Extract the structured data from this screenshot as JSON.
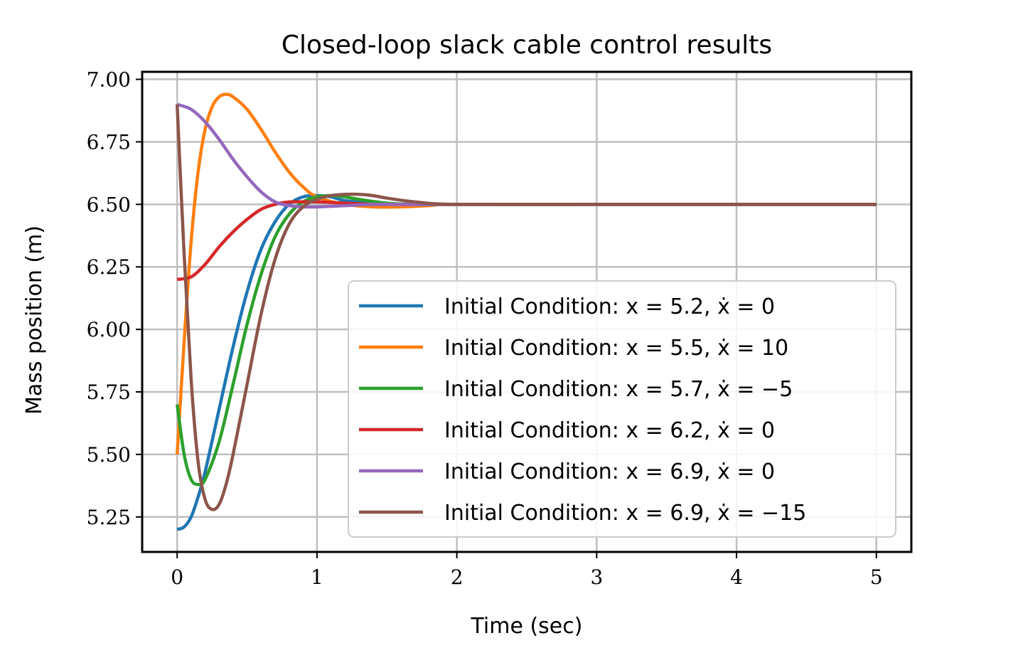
{
  "chart_data": {
    "type": "line",
    "title": "Closed-loop slack cable control results",
    "xlabel": "Time (sec)",
    "ylabel": "Mass position (m)",
    "xlim": [
      -0.25,
      5.25
    ],
    "ylim": [
      5.11,
      7.03
    ],
    "xticks": [
      "0",
      "1",
      "2",
      "3",
      "4",
      "5"
    ],
    "yticks": [
      "5.25",
      "5.50",
      "5.75",
      "6.00",
      "6.25",
      "6.50",
      "6.75",
      "7.00"
    ],
    "grid": true,
    "legend_position": "lower-right",
    "series": [
      {
        "name": "Initial Condition: x = 5.2, ẋ = 0",
        "color": "#1f77b4",
        "x": [
          0,
          0.05,
          0.1,
          0.15,
          0.2,
          0.3,
          0.4,
          0.5,
          0.6,
          0.7,
          0.8,
          0.9,
          1.0,
          1.1,
          1.2,
          1.4,
          1.6,
          1.8,
          2.0,
          3.0,
          4.0,
          5.0
        ],
        "y": [
          5.2,
          5.21,
          5.25,
          5.33,
          5.43,
          5.68,
          5.93,
          6.15,
          6.32,
          6.43,
          6.5,
          6.53,
          6.535,
          6.53,
          6.515,
          6.505,
          6.5,
          6.5,
          6.5,
          6.5,
          6.5,
          6.5
        ]
      },
      {
        "name": "Initial Condition: x = 5.5, ẋ = 10",
        "color": "#ff7f0e",
        "x": [
          0,
          0.05,
          0.1,
          0.15,
          0.2,
          0.25,
          0.3,
          0.35,
          0.4,
          0.5,
          0.6,
          0.7,
          0.8,
          0.9,
          1.0,
          1.2,
          1.4,
          1.6,
          1.8,
          2.0,
          3.0,
          4.0,
          5.0
        ],
        "y": [
          5.5,
          5.95,
          6.35,
          6.63,
          6.8,
          6.89,
          6.93,
          6.94,
          6.93,
          6.88,
          6.8,
          6.71,
          6.63,
          6.57,
          6.53,
          6.5,
          6.49,
          6.49,
          6.495,
          6.5,
          6.5,
          6.5,
          6.5
        ]
      },
      {
        "name": "Initial Condition: x = 5.7, ẋ = −5",
        "color": "#2ca02c",
        "x": [
          0,
          0.05,
          0.1,
          0.15,
          0.2,
          0.3,
          0.4,
          0.5,
          0.6,
          0.7,
          0.8,
          0.9,
          1.0,
          1.1,
          1.2,
          1.3,
          1.5,
          1.7,
          2.0,
          3.0,
          4.0,
          5.0
        ],
        "y": [
          5.7,
          5.5,
          5.4,
          5.38,
          5.4,
          5.55,
          5.78,
          6.02,
          6.22,
          6.37,
          6.46,
          6.51,
          6.53,
          6.535,
          6.53,
          6.52,
          6.505,
          6.5,
          6.5,
          6.5,
          6.5,
          6.5
        ]
      },
      {
        "name": "Initial Condition: x = 6.2, ẋ = 0",
        "color": "#d62728",
        "x": [
          0,
          0.1,
          0.2,
          0.3,
          0.4,
          0.5,
          0.6,
          0.7,
          0.8,
          0.9,
          1.0,
          1.2,
          1.4,
          1.6,
          2.0,
          3.0,
          4.0,
          5.0
        ],
        "y": [
          6.2,
          6.21,
          6.26,
          6.33,
          6.39,
          6.44,
          6.48,
          6.5,
          6.51,
          6.51,
          6.51,
          6.505,
          6.5,
          6.5,
          6.5,
          6.5,
          6.5,
          6.5
        ]
      },
      {
        "name": "Initial Condition: x = 6.9, ẋ = 0",
        "color": "#9467bd",
        "x": [
          0,
          0.1,
          0.2,
          0.3,
          0.4,
          0.5,
          0.6,
          0.7,
          0.8,
          0.9,
          1.0,
          1.2,
          1.4,
          1.6,
          2.0,
          3.0,
          4.0,
          5.0
        ],
        "y": [
          6.9,
          6.88,
          6.83,
          6.76,
          6.68,
          6.61,
          6.55,
          6.51,
          6.495,
          6.49,
          6.49,
          6.495,
          6.5,
          6.5,
          6.5,
          6.5,
          6.5,
          6.5
        ]
      },
      {
        "name": "Initial Condition: x = 6.9, ẋ = −15",
        "color": "#8c564b",
        "x": [
          0,
          0.05,
          0.1,
          0.15,
          0.2,
          0.25,
          0.3,
          0.35,
          0.4,
          0.5,
          0.6,
          0.7,
          0.8,
          0.9,
          1.0,
          1.1,
          1.2,
          1.3,
          1.4,
          1.5,
          1.7,
          2.0,
          3.0,
          4.0,
          5.0
        ],
        "y": [
          6.9,
          6.3,
          5.8,
          5.47,
          5.32,
          5.28,
          5.3,
          5.38,
          5.5,
          5.78,
          6.06,
          6.28,
          6.42,
          6.49,
          6.52,
          6.535,
          6.54,
          6.54,
          6.535,
          6.525,
          6.51,
          6.5,
          6.5,
          6.5,
          6.5
        ]
      }
    ]
  }
}
